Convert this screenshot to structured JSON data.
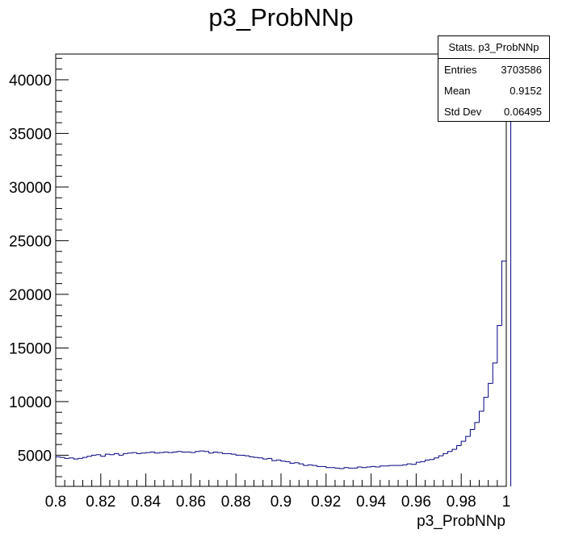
{
  "chart_data": {
    "type": "histogram",
    "title": "p3_ProbNNp",
    "xlabel": "p3_ProbNNp",
    "ylabel": "",
    "xlim": [
      0.8,
      1.0
    ],
    "ylim": [
      2100,
      42400
    ],
    "x_ticks": [
      "0.8",
      "0.82",
      "0.84",
      "0.86",
      "0.88",
      "0.9",
      "0.92",
      "0.94",
      "0.96",
      "0.98",
      "1"
    ],
    "y_ticks": [
      "5000",
      "10000",
      "15000",
      "20000",
      "25000",
      "30000",
      "35000",
      "40000"
    ],
    "bin_width": 0.002,
    "bin_edges_start": 0.8,
    "values": [
      4850,
      4800,
      4700,
      4750,
      4650,
      4700,
      4800,
      4900,
      5000,
      5050,
      4900,
      5100,
      5050,
      5150,
      5000,
      5150,
      5200,
      5250,
      5150,
      5200,
      5250,
      5300,
      5200,
      5250,
      5300,
      5250,
      5300,
      5350,
      5300,
      5300,
      5250,
      5350,
      5400,
      5350,
      5200,
      5300,
      5250,
      5150,
      5150,
      5100,
      5000,
      5000,
      4950,
      4850,
      4800,
      4750,
      4650,
      4700,
      4500,
      4550,
      4450,
      4400,
      4250,
      4300,
      4200,
      4050,
      4100,
      4050,
      3950,
      3950,
      3850,
      3850,
      3800,
      3750,
      3850,
      3800,
      3800,
      3900,
      3850,
      3900,
      3950,
      3900,
      4000,
      4000,
      4050,
      4050,
      4050,
      4100,
      4200,
      4150,
      4350,
      4400,
      4550,
      4600,
      4750,
      4950,
      5150,
      5350,
      5550,
      5900,
      6300,
      6750,
      7400,
      8050,
      9100,
      10400,
      11700,
      13600,
      17100,
      23100,
      41500
    ],
    "line_color": "#000080",
    "grid": false,
    "stats": {
      "title": "Stats. p3_ProbNNp",
      "entries_label": "Entries",
      "entries_value": "3703586",
      "mean_label": "Mean",
      "mean_value": "0.9152",
      "stddev_label": "Std Dev",
      "stddev_value": "0.06495"
    }
  }
}
